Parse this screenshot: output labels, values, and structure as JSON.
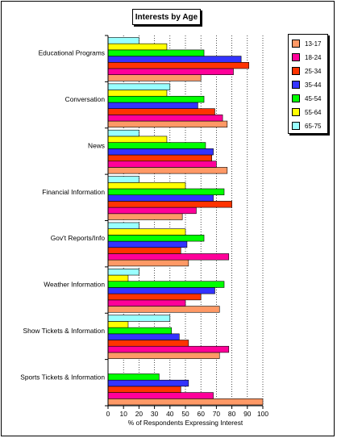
{
  "chart_data": {
    "type": "bar",
    "orientation": "horizontal",
    "title": "Interests by Age",
    "xlabel": "% of Respondents Expressing Interest",
    "ylabel": "",
    "xlim": [
      0,
      100
    ],
    "xticks": [
      0,
      10,
      20,
      30,
      40,
      50,
      60,
      70,
      80,
      90,
      100
    ],
    "grid": "vertical-dotted",
    "legend_position": "right",
    "categories": [
      "Educational Programs",
      "Conversation",
      "News",
      "Financial Information",
      "Gov't Reports/Info",
      "Weather Information",
      "Show Tickets & Information",
      "Sports Tickets & Information"
    ],
    "series": [
      {
        "name": "13-17",
        "color": "#FF9966",
        "values": [
          60,
          77,
          77,
          48,
          52,
          72,
          72,
          100
        ]
      },
      {
        "name": "18-24",
        "color": "#FF0099",
        "values": [
          81,
          74,
          70,
          57,
          78,
          50,
          78,
          68
        ]
      },
      {
        "name": "25-34",
        "color": "#FF3300",
        "values": [
          91,
          69,
          67,
          80,
          47,
          60,
          52,
          47
        ]
      },
      {
        "name": "35-44",
        "color": "#3333FF",
        "values": [
          86,
          58,
          68,
          68,
          51,
          69,
          46,
          52
        ]
      },
      {
        "name": "45-54",
        "color": "#00FF00",
        "values": [
          62,
          62,
          63,
          75,
          62,
          75,
          41,
          33
        ]
      },
      {
        "name": "55-64",
        "color": "#FFFF00",
        "values": [
          38,
          38,
          38,
          50,
          50,
          13,
          13,
          0
        ]
      },
      {
        "name": "65-75",
        "color": "#99FFFF",
        "values": [
          20,
          40,
          20,
          20,
          20,
          20,
          40,
          0
        ]
      }
    ]
  }
}
